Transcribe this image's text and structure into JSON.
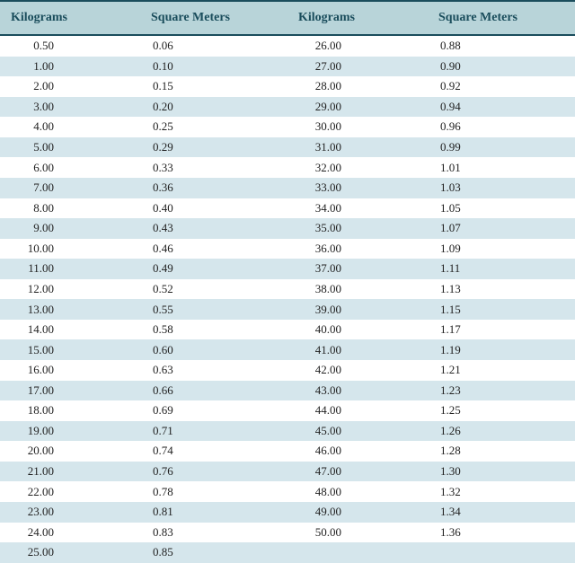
{
  "table": {
    "type": "table",
    "columns": [
      "Kilograms",
      "Square Meters",
      "Kilograms",
      "Square Meters"
    ],
    "header_bg": "#b8d4d9",
    "header_text_color": "#1a4d5c",
    "header_border_color": "#1a4d5c",
    "header_fontsize": 14,
    "row_even_bg": "#d5e6ec",
    "row_odd_bg": "#ffffff",
    "cell_fontsize": 13,
    "cell_text_color": "#222222",
    "column_widths": [
      "25%",
      "25%",
      "25%",
      "25%"
    ],
    "rows": [
      [
        "0.50",
        "0.06",
        "26.00",
        "0.88"
      ],
      [
        "1.00",
        "0.10",
        "27.00",
        "0.90"
      ],
      [
        "2.00",
        "0.15",
        "28.00",
        "0.92"
      ],
      [
        "3.00",
        "0.20",
        "29.00",
        "0.94"
      ],
      [
        "4.00",
        "0.25",
        "30.00",
        "0.96"
      ],
      [
        "5.00",
        "0.29",
        "31.00",
        "0.99"
      ],
      [
        "6.00",
        "0.33",
        "32.00",
        "1.01"
      ],
      [
        "7.00",
        "0.36",
        "33.00",
        "1.03"
      ],
      [
        "8.00",
        "0.40",
        "34.00",
        "1.05"
      ],
      [
        "9.00",
        "0.43",
        "35.00",
        "1.07"
      ],
      [
        "10.00",
        "0.46",
        "36.00",
        "1.09"
      ],
      [
        "11.00",
        "0.49",
        "37.00",
        "1.11"
      ],
      [
        "12.00",
        "0.52",
        "38.00",
        "1.13"
      ],
      [
        "13.00",
        "0.55",
        "39.00",
        "1.15"
      ],
      [
        "14.00",
        "0.58",
        "40.00",
        "1.17"
      ],
      [
        "15.00",
        "0.60",
        "41.00",
        "1.19"
      ],
      [
        "16.00",
        "0.63",
        "42.00",
        "1.21"
      ],
      [
        "17.00",
        "0.66",
        "43.00",
        "1.23"
      ],
      [
        "18.00",
        "0.69",
        "44.00",
        "1.25"
      ],
      [
        "19.00",
        "0.71",
        "45.00",
        "1.26"
      ],
      [
        "20.00",
        "0.74",
        "46.00",
        "1.28"
      ],
      [
        "21.00",
        "0.76",
        "47.00",
        "1.30"
      ],
      [
        "22.00",
        "0.78",
        "48.00",
        "1.32"
      ],
      [
        "23.00",
        "0.81",
        "49.00",
        "1.34"
      ],
      [
        "24.00",
        "0.83",
        "50.00",
        "1.36"
      ],
      [
        "25.00",
        "0.85",
        "",
        ""
      ]
    ]
  }
}
